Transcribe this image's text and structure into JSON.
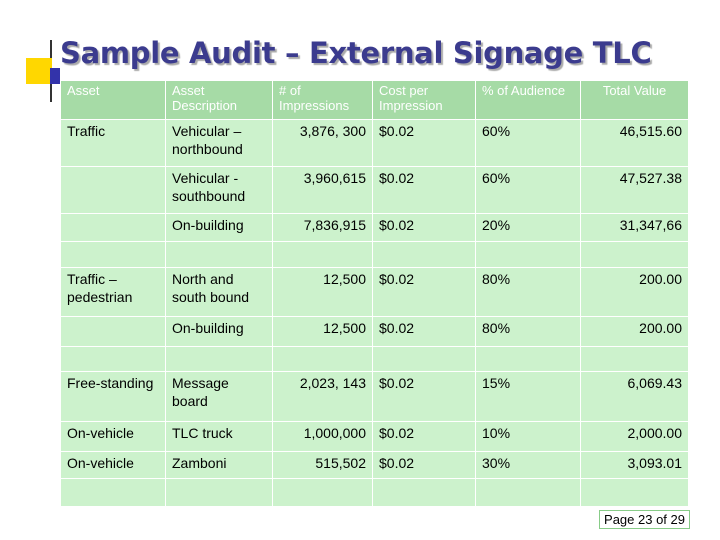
{
  "title": "Sample Audit – External Signage TLC",
  "table": {
    "headers": [
      "Asset",
      "Asset Description",
      "# of Impressions",
      "Cost per Impression",
      "% of Audience",
      "Total Value"
    ],
    "rows": [
      [
        "Traffic",
        "Vehicular – northbound",
        "3,876, 300",
        "$0.02",
        "60%",
        "46,515.60"
      ],
      [
        null,
        "Vehicular - southbound",
        "3,960,615",
        "$0.02",
        "60%",
        "47,527.38"
      ],
      [
        null,
        "On-building",
        "7,836,915",
        "$0.02",
        "20%",
        "31,347,66"
      ],
      [
        null,
        null,
        null,
        null,
        null,
        null
      ],
      [
        "Traffic – pedestrian",
        "North and south bound",
        "12,500",
        "$0.02",
        "80%",
        "200.00"
      ],
      [
        null,
        "On-building",
        "12,500",
        "$0.02",
        "80%",
        "200.00"
      ],
      [
        null,
        null,
        null,
        null,
        null,
        null
      ],
      [
        "Free-standing",
        "Message board",
        "2,023, 143",
        "$0.02",
        "15%",
        "6,069.43"
      ],
      [
        "On-vehicle",
        "TLC truck",
        "1,000,000",
        "$0.02",
        "10%",
        "2,000.00"
      ],
      [
        "On-vehicle",
        "Zamboni",
        "515,502",
        "$0.02",
        "30%",
        "3,093.01"
      ],
      [
        null,
        null,
        null,
        null,
        null,
        null
      ]
    ]
  },
  "footer": "Page 23 of 29"
}
